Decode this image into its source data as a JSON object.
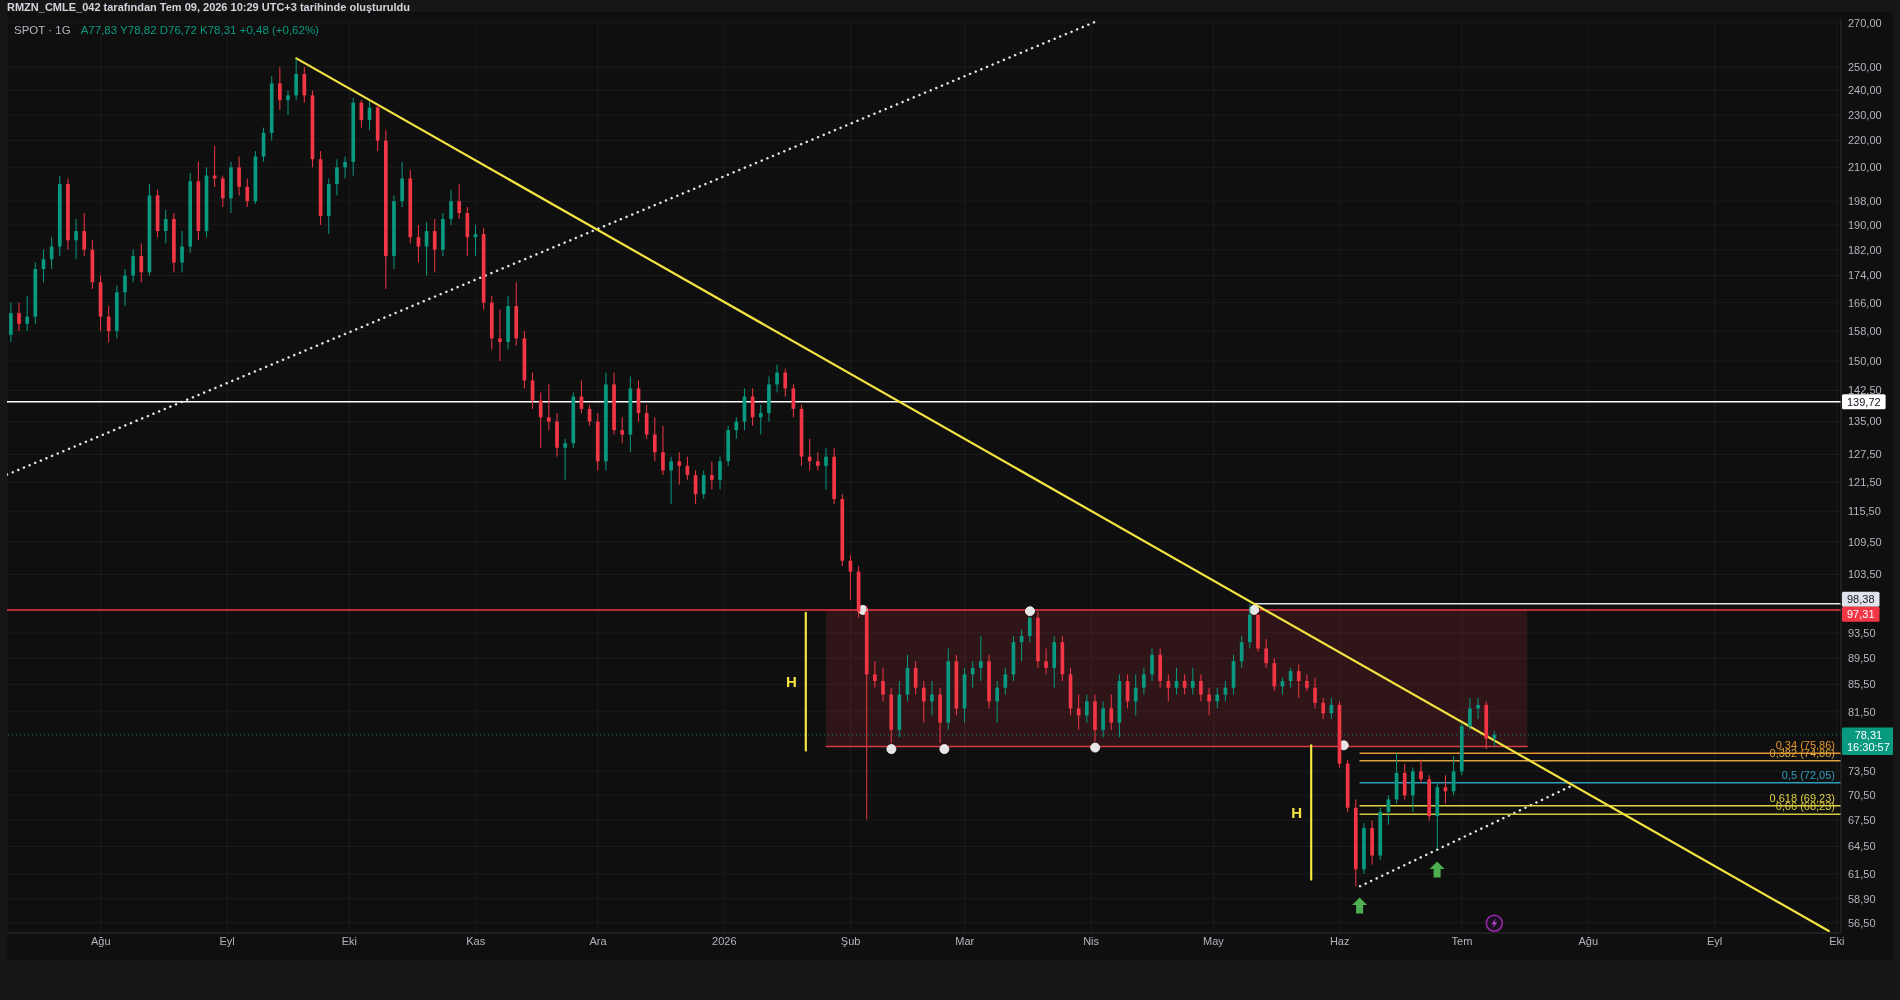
{
  "chart_data": {
    "type": "candlestick",
    "title": "SPOT · 1G",
    "subtitle": "A77,83 Y78,82 D76,72 K78,31 +0,48 (+0,62%)",
    "annotations": [
      "RMZN_CMLE_042 tarafından Tem 09, 2026 10:29 UTC+3 tarihinde oluşturuldu",
      {
        "text": "0,34 (75,86)",
        "x": "2026-10-02",
        "y": 75.86
      },
      {
        "text": "0,382 (74,86)",
        "x": "2026-10-02",
        "y": 74.86
      },
      {
        "text": "0,5 (72,05)",
        "x": "2026-10-02",
        "y": 72.05
      },
      {
        "text": "0,618 (69,23)",
        "x": "2026-10-02",
        "y": 69.23
      },
      {
        "text": "0,66 (68,23)",
        "x": "2026-10-02",
        "y": 68.23
      }
    ],
    "x": [
      "2025-07-10",
      "2025-07-12",
      "2025-07-14",
      "2025-07-16",
      "2025-07-18",
      "2025-07-20",
      "2025-07-22",
      "2025-07-24",
      "2025-07-26",
      "2025-07-28",
      "2025-07-30",
      "2025-08-01",
      "2025-08-03",
      "2025-08-05",
      "2025-08-07",
      "2025-08-09",
      "2025-08-11",
      "2025-08-13",
      "2025-08-15",
      "2025-08-17",
      "2025-08-19",
      "2025-08-21",
      "2025-08-23",
      "2025-08-25",
      "2025-08-27",
      "2025-08-29",
      "2025-08-31",
      "2025-09-02",
      "2025-09-04",
      "2025-09-06",
      "2025-09-08",
      "2025-09-10",
      "2025-09-12",
      "2025-09-14",
      "2025-09-16",
      "2025-09-18",
      "2025-09-20",
      "2025-09-22",
      "2025-09-24",
      "2025-09-26",
      "2025-09-28",
      "2025-09-30",
      "2025-10-02",
      "2025-10-04",
      "2025-10-06",
      "2025-10-08",
      "2025-10-10",
      "2025-10-12",
      "2025-10-14",
      "2025-10-16",
      "2025-10-18",
      "2025-10-20",
      "2025-10-22",
      "2025-10-24",
      "2025-10-26",
      "2025-10-28",
      "2025-10-30",
      "2025-11-01",
      "2025-11-03",
      "2025-11-05",
      "2025-11-07",
      "2025-11-09",
      "2025-11-11",
      "2025-11-13",
      "2025-11-15",
      "2025-11-17",
      "2025-11-19",
      "2025-11-21",
      "2025-11-23",
      "2025-11-25",
      "2025-11-27",
      "2025-11-29",
      "2025-12-01",
      "2025-12-03",
      "2025-12-05",
      "2025-12-07",
      "2025-12-09",
      "2025-12-11",
      "2025-12-13",
      "2025-12-15",
      "2025-12-17",
      "2025-12-19",
      "2025-12-21",
      "2025-12-23",
      "2025-12-25",
      "2025-12-27",
      "2025-12-29",
      "2025-12-31",
      "2026-01-02",
      "2026-01-04",
      "2026-01-06",
      "2026-01-08",
      "2026-01-10",
      "2026-01-12",
      "2026-01-14",
      "2026-01-16",
      "2026-01-18",
      "2026-01-20",
      "2026-01-22",
      "2026-01-24",
      "2026-01-26",
      "2026-01-28",
      "2026-01-30",
      "2026-02-01",
      "2026-02-03",
      "2026-02-05",
      "2026-02-07",
      "2026-02-09",
      "2026-02-11",
      "2026-02-13",
      "2026-02-15",
      "2026-02-17",
      "2026-02-19",
      "2026-02-21",
      "2026-02-23",
      "2026-02-25",
      "2026-02-27",
      "2026-03-01",
      "2026-03-03",
      "2026-03-05",
      "2026-03-07",
      "2026-03-09",
      "2026-03-11",
      "2026-03-13",
      "2026-03-15",
      "2026-03-17",
      "2026-03-19",
      "2026-03-21",
      "2026-03-23",
      "2026-03-25",
      "2026-03-27",
      "2026-03-29",
      "2026-03-31",
      "2026-04-02",
      "2026-04-04",
      "2026-04-06",
      "2026-04-08",
      "2026-04-10",
      "2026-04-12",
      "2026-04-14",
      "2026-04-16",
      "2026-04-18",
      "2026-04-20",
      "2026-04-22",
      "2026-04-24",
      "2026-04-26",
      "2026-04-28",
      "2026-04-30",
      "2026-05-02",
      "2026-05-04",
      "2026-05-06",
      "2026-05-08",
      "2026-05-10",
      "2026-05-12",
      "2026-05-14",
      "2026-05-16",
      "2026-05-18",
      "2026-05-20",
      "2026-05-22",
      "2026-05-24",
      "2026-05-26",
      "2026-05-28",
      "2026-05-30",
      "2026-06-01",
      "2026-06-03",
      "2026-06-05",
      "2026-06-07",
      "2026-06-09",
      "2026-06-11",
      "2026-06-13",
      "2026-06-15",
      "2026-06-17",
      "2026-06-19",
      "2026-06-21",
      "2026-06-23",
      "2026-06-25",
      "2026-06-27",
      "2026-06-29",
      "2026-07-01",
      "2026-07-03",
      "2026-07-05",
      "2026-07-07",
      "2026-07-09"
    ],
    "ohlc": [
      [
        157,
        166,
        155,
        163
      ],
      [
        163,
        166,
        158,
        160
      ],
      [
        160,
        168,
        158,
        162
      ],
      [
        162,
        178,
        160,
        176
      ],
      [
        176,
        182,
        172,
        179
      ],
      [
        179,
        186,
        176,
        183
      ],
      [
        183,
        207,
        180,
        204
      ],
      [
        204,
        206,
        182,
        185
      ],
      [
        185,
        192,
        179,
        188
      ],
      [
        188,
        194,
        180,
        182
      ],
      [
        182,
        185,
        170,
        172
      ],
      [
        172,
        174,
        158,
        162
      ],
      [
        162,
        165,
        155,
        158
      ],
      [
        158,
        171,
        156,
        169
      ],
      [
        169,
        176,
        165,
        174
      ],
      [
        174,
        182,
        172,
        180
      ],
      [
        180,
        184,
        172,
        175
      ],
      [
        175,
        204,
        174,
        200
      ],
      [
        200,
        202,
        186,
        188
      ],
      [
        188,
        195,
        184,
        192
      ],
      [
        192,
        194,
        175,
        178
      ],
      [
        178,
        188,
        175,
        183
      ],
      [
        183,
        208,
        181,
        205
      ],
      [
        205,
        212,
        185,
        188
      ],
      [
        188,
        210,
        186,
        207
      ],
      [
        207,
        218,
        203,
        206
      ],
      [
        206,
        207,
        196,
        199
      ],
      [
        199,
        212,
        194,
        210
      ],
      [
        210,
        214,
        200,
        203
      ],
      [
        203,
        206,
        196,
        198
      ],
      [
        198,
        216,
        197,
        214
      ],
      [
        214,
        225,
        212,
        223
      ],
      [
        223,
        246,
        220,
        243
      ],
      [
        243,
        250,
        232,
        236
      ],
      [
        236,
        240,
        230,
        238
      ],
      [
        238,
        253.5,
        236,
        247
      ],
      [
        247,
        250,
        235,
        238
      ],
      [
        238,
        240,
        210,
        213
      ],
      [
        213,
        216,
        190,
        193
      ],
      [
        193,
        206,
        187,
        204
      ],
      [
        204,
        213,
        200,
        210
      ],
      [
        210,
        214,
        206,
        212
      ],
      [
        212,
        237,
        207,
        235
      ],
      [
        235,
        236,
        225,
        228
      ],
      [
        228,
        235.5,
        224,
        233
      ],
      [
        233,
        234,
        216,
        220
      ],
      [
        220,
        224,
        170,
        180
      ],
      [
        180,
        200,
        176,
        198
      ],
      [
        198,
        212,
        196,
        206
      ],
      [
        206,
        209,
        184,
        186
      ],
      [
        186,
        190,
        178,
        183
      ],
      [
        183,
        191,
        174,
        188
      ],
      [
        188,
        192,
        175,
        182
      ],
      [
        182,
        194,
        180,
        192
      ],
      [
        192,
        202,
        190,
        198
      ],
      [
        198,
        204,
        192,
        194
      ],
      [
        194,
        196,
        180,
        186
      ],
      [
        186,
        190,
        180,
        187
      ],
      [
        187,
        189,
        164,
        166
      ],
      [
        166,
        168,
        153,
        156
      ],
      [
        156,
        164,
        150,
        155
      ],
      [
        155,
        168,
        153,
        165
      ],
      [
        165,
        172,
        154,
        156
      ],
      [
        156,
        158,
        143,
        145
      ],
      [
        145,
        147,
        138,
        140
      ],
      [
        140,
        142,
        129,
        136
      ],
      [
        136,
        144,
        133,
        135
      ],
      [
        135,
        137,
        127,
        129
      ],
      [
        129,
        131,
        122,
        130
      ],
      [
        130,
        142,
        129,
        141
      ],
      [
        141,
        145,
        137,
        138
      ],
      [
        138,
        139,
        134,
        135
      ],
      [
        135,
        137,
        124,
        126
      ],
      [
        126,
        147,
        124,
        144
      ],
      [
        144,
        147,
        132,
        133
      ],
      [
        133,
        136,
        130,
        132
      ],
      [
        132,
        146,
        128,
        143
      ],
      [
        143,
        145,
        135,
        137
      ],
      [
        137,
        139,
        131,
        132
      ],
      [
        132,
        136,
        126,
        128
      ],
      [
        128,
        134,
        123,
        124
      ],
      [
        124,
        127,
        117,
        126
      ],
      [
        126,
        128,
        121,
        125
      ],
      [
        125,
        127,
        122,
        123
      ],
      [
        123,
        124,
        117,
        119
      ],
      [
        119,
        124,
        118,
        123
      ],
      [
        123,
        126,
        120,
        122
      ],
      [
        122,
        127,
        120,
        126
      ],
      [
        126,
        134,
        125,
        133
      ],
      [
        133,
        136,
        131,
        135
      ],
      [
        135,
        143,
        133,
        141
      ],
      [
        141,
        143,
        134,
        136
      ],
      [
        136,
        139,
        132,
        137
      ],
      [
        137,
        146,
        135,
        144
      ],
      [
        144,
        149,
        142,
        147
      ],
      [
        147,
        148,
        141,
        143
      ],
      [
        143,
        144,
        136,
        138
      ],
      [
        138,
        139,
        125,
        127
      ],
      [
        127,
        131,
        124,
        126
      ],
      [
        126,
        128,
        124,
        125
      ],
      [
        125,
        129,
        120,
        127
      ],
      [
        127,
        129,
        117,
        118
      ],
      [
        118,
        119,
        105,
        106
      ],
      [
        106,
        107,
        99,
        104
      ],
      [
        104,
        105,
        96,
        97
      ],
      [
        97,
        98,
        67.6,
        87
      ],
      [
        87,
        89,
        85,
        86
      ],
      [
        86,
        88,
        83,
        84
      ],
      [
        84,
        85,
        77.2,
        79
      ],
      [
        79,
        86,
        78,
        84
      ],
      [
        84,
        90,
        83,
        88
      ],
      [
        88,
        89,
        84,
        85
      ],
      [
        85,
        86,
        80,
        83
      ],
      [
        83,
        86,
        81,
        84
      ],
      [
        84,
        85,
        77.2,
        80
      ],
      [
        80,
        91,
        79,
        89
      ],
      [
        89,
        90,
        81,
        82
      ],
      [
        82,
        88,
        80,
        87
      ],
      [
        87,
        89,
        85,
        88
      ],
      [
        88,
        93,
        86,
        89
      ],
      [
        89,
        90,
        82,
        83
      ],
      [
        83,
        86,
        80,
        85
      ],
      [
        85,
        88,
        84,
        87
      ],
      [
        87,
        93,
        86,
        92
      ],
      [
        92,
        94,
        89,
        93
      ],
      [
        93,
        96.2,
        92,
        96
      ],
      [
        96,
        97,
        88,
        89
      ],
      [
        89,
        91,
        87,
        88
      ],
      [
        88,
        93,
        85,
        92
      ],
      [
        92,
        93,
        86,
        87
      ],
      [
        87,
        88,
        81,
        82
      ],
      [
        82,
        84,
        79,
        81
      ],
      [
        81,
        84,
        80,
        83
      ],
      [
        83,
        84,
        77.4,
        79
      ],
      [
        79,
        83,
        78,
        82
      ],
      [
        82,
        84,
        79,
        80
      ],
      [
        80,
        87,
        78,
        86
      ],
      [
        86,
        87,
        82,
        83
      ],
      [
        83,
        87,
        81,
        85
      ],
      [
        85,
        88,
        84,
        87
      ],
      [
        87,
        91,
        86,
        90
      ],
      [
        90,
        91,
        85,
        86
      ],
      [
        86,
        87,
        83,
        85
      ],
      [
        85,
        88,
        84,
        86
      ],
      [
        86,
        87,
        84,
        85
      ],
      [
        85,
        88,
        84,
        86
      ],
      [
        86,
        87,
        83,
        84
      ],
      [
        84,
        85,
        81,
        83
      ],
      [
        83,
        85,
        82,
        84
      ],
      [
        84,
        86,
        83,
        85
      ],
      [
        85,
        90,
        84,
        89
      ],
      [
        89,
        93,
        88,
        92
      ],
      [
        92,
        98.38,
        91,
        96.5
      ],
      [
        96.5,
        96.5,
        90.5,
        91
      ],
      [
        91,
        92.5,
        88,
        88.7
      ],
      [
        88.7,
        89.5,
        84.5,
        85.2
      ],
      [
        85.2,
        86.5,
        84,
        86
      ],
      [
        86,
        88,
        85,
        87.5
      ],
      [
        87.5,
        88.5,
        83.5,
        86
      ],
      [
        86,
        87,
        84.5,
        85
      ],
      [
        85,
        86.5,
        82,
        82.8
      ],
      [
        82.8,
        83.5,
        80.5,
        81.3
      ],
      [
        81.3,
        83.5,
        80.5,
        82.5
      ],
      [
        82.5,
        83,
        74,
        74.5
      ],
      [
        74.5,
        75,
        68.5,
        69
      ],
      [
        69,
        70,
        60.2,
        62
      ],
      [
        62,
        67.2,
        61.5,
        66.6
      ],
      [
        66.6,
        67.5,
        62.5,
        63.5
      ],
      [
        63.5,
        69,
        63,
        68.5
      ],
      [
        68.5,
        70.5,
        67,
        70
      ],
      [
        70,
        75.9,
        69.5,
        73.3
      ],
      [
        73.3,
        74.5,
        70,
        70.5
      ],
      [
        70.5,
        74,
        68.5,
        73.5
      ],
      [
        73.5,
        75,
        72,
        72.5
      ],
      [
        72.5,
        73,
        67.5,
        68
      ],
      [
        68,
        72,
        64.2,
        71.5
      ],
      [
        71.5,
        73,
        69.5,
        71
      ],
      [
        71,
        75.5,
        70.5,
        73.5
      ],
      [
        73.5,
        80,
        73,
        79.5
      ],
      [
        79.5,
        83.5,
        79,
        82
      ],
      [
        82,
        83.5,
        80.5,
        82.5
      ],
      [
        82.5,
        83,
        76.4,
        77.83
      ],
      [
        77.83,
        78.82,
        76.72,
        78.31
      ]
    ],
    "colors": [
      "#089981",
      "#f23645",
      "#089981",
      "#089981",
      "#089981",
      "#089981",
      "#089981",
      "#f23645",
      "#089981",
      "#f23645",
      "#f23645",
      "#f23645",
      "#f23645",
      "#089981",
      "#089981",
      "#089981",
      "#f23645",
      "#089981",
      "#f23645",
      "#089981",
      "#f23645",
      "#089981",
      "#089981",
      "#f23645",
      "#089981",
      "#f23645",
      "#f23645",
      "#089981",
      "#f23645",
      "#f23645",
      "#089981",
      "#089981",
      "#089981",
      "#f23645",
      "#089981",
      "#089981",
      "#f23645",
      "#f23645",
      "#f23645",
      "#089981",
      "#089981",
      "#089981",
      "#089981",
      "#f23645",
      "#089981",
      "#f23645",
      "#f23645",
      "#089981",
      "#089981",
      "#f23645",
      "#f23645",
      "#089981",
      "#f23645",
      "#089981",
      "#089981",
      "#f23645",
      "#f23645",
      "#089981",
      "#f23645",
      "#f23645",
      "#f23645",
      "#089981",
      "#f23645",
      "#f23645",
      "#f23645",
      "#f23645",
      "#f23645",
      "#f23645",
      "#089981",
      "#089981",
      "#f23645",
      "#f23645",
      "#f23645",
      "#089981",
      "#f23645",
      "#f23645",
      "#089981",
      "#f23645",
      "#f23645",
      "#f23645",
      "#f23645",
      "#089981",
      "#f23645",
      "#f23645",
      "#f23645",
      "#089981",
      "#f23645",
      "#089981",
      "#089981",
      "#089981",
      "#089981",
      "#f23645",
      "#089981",
      "#089981",
      "#089981",
      "#f23645",
      "#f23645",
      "#f23645",
      "#f23645",
      "#f23645",
      "#089981",
      "#f23645",
      "#f23645",
      "#f23645",
      "#f23645",
      "#f23645",
      "#f23645",
      "#f23645",
      "#f23645",
      "#089981",
      "#089981",
      "#f23645",
      "#f23645",
      "#089981",
      "#f23645",
      "#089981",
      "#f23645",
      "#089981",
      "#089981",
      "#089981",
      "#f23645",
      "#089981",
      "#089981",
      "#089981",
      "#089981",
      "#089981",
      "#f23645",
      "#f23645",
      "#089981",
      "#f23645",
      "#f23645",
      "#f23645",
      "#089981",
      "#f23645",
      "#089981",
      "#f23645",
      "#089981",
      "#f23645",
      "#089981",
      "#089981",
      "#089981",
      "#f23645",
      "#f23645",
      "#089981",
      "#f23645",
      "#089981",
      "#f23645",
      "#f23645",
      "#089981",
      "#089981",
      "#089981",
      "#089981",
      "#089981",
      "#f23645",
      "#f23645",
      "#f23645",
      "#089981",
      "#089981",
      "#f23645",
      "#f23645",
      "#f23645",
      "#f23645",
      "#089981",
      "#f23645",
      "#f23645",
      "#f23645",
      "#089981",
      "#f23645",
      "#089981",
      "#089981",
      "#089981",
      "#f23645",
      "#089981",
      "#f23645",
      "#f23645",
      "#089981",
      "#f23645",
      "#089981",
      "#089981",
      "#089981",
      "#089981",
      "#f23645",
      "#089981"
    ],
    "series": [
      {
        "type": "line",
        "x": [
          "2026-01-26",
          "2026-07-17"
        ],
        "values": [
          76.75,
          76.75
        ],
        "lower": [
          76.75,
          76.75
        ],
        "upper": [
          97.31,
          97.31
        ],
        "color": "#d93a48"
      },
      {
        "type": "line",
        "x": [
          "2025-07-09",
          "2026-04-02"
        ],
        "values": [
          123.1,
          270.4
        ],
        "color": "#e0e3eb",
        "line_style": "dotted"
      },
      {
        "type": "line",
        "x": [
          "2026-06-06",
          "2026-07-28"
        ],
        "values": [
          60.2,
          71.7
        ],
        "color": "#e0e3eb",
        "line_style": "dotted"
      },
      {
        "type": "line",
        "name": "98,38",
        "x": [
          "2026-05-11",
          "2026-10-02"
        ],
        "values": [
          98.38,
          98.38
        ],
        "color": "#e0e3eb"
      },
      {
        "type": "line",
        "x": [
          "2026-06-06",
          "2026-10-02"
        ],
        "values": [
          75.86,
          75.86
        ],
        "color": "#e8922e"
      },
      {
        "type": "line",
        "x": [
          "2026-06-06",
          "2026-10-02"
        ],
        "values": [
          74.86,
          74.86
        ],
        "color": "#d9a441"
      },
      {
        "type": "line",
        "x": [
          "2026-06-06",
          "2026-10-02"
        ],
        "values": [
          72.05,
          72.05
        ],
        "color": "#2f9fbf"
      },
      {
        "type": "line",
        "x": [
          "2026-06-06",
          "2026-10-02"
        ],
        "values": [
          69.23,
          69.23
        ],
        "color": "#e2d245"
      },
      {
        "type": "line",
        "x": [
          "2026-06-06",
          "2026-10-02"
        ],
        "values": [
          68.23,
          68.23
        ],
        "color": "#d6c840"
      },
      {
        "type": "line",
        "name": "H",
        "x": [
          "2026-01-21",
          "2026-01-21"
        ],
        "values": [
          96.8,
          76.2
        ],
        "color": "#f5e342"
      },
      {
        "type": "line",
        "name": "H",
        "x": [
          "2026-05-25",
          "2026-05-25"
        ],
        "values": [
          76.9,
          60.9
        ],
        "color": "#f5e342"
      },
      {
        "type": "line",
        "x": [
          "2025-09-18",
          "2026-09-29"
        ],
        "values": [
          253.8,
          55.7
        ],
        "color": "#f5e342"
      },
      {
        "type": "scatter",
        "marker": "circle",
        "x": [
          "2026-02-04",
          "2026-02-11",
          "2026-02-24",
          "2026-03-17",
          "2026-04-02",
          "2026-05-11",
          "2026-06-02"
        ],
        "values": [
          97.31,
          76.4,
          76.4,
          97.1,
          76.6,
          97.31,
          76.9
        ],
        "color": "#e6e6e6"
      }
    ],
    "ref_lines": [
      {
        "axis": "y",
        "value": 139.72,
        "label": "139,72",
        "color": "#ffffff"
      },
      {
        "axis": "y",
        "value": 97.31,
        "label": "97,31",
        "color": "#f23645"
      },
      {
        "axis": "y",
        "value": 78.31,
        "label": "78,31\n16:30:57",
        "color": "#089981",
        "line_style": "dotted"
      }
    ],
    "xlim": [
      "2025-07-09",
      "2026-10-02"
    ],
    "xticks": [
      {
        "value": "2025-08-01",
        "label": "Ağu"
      },
      {
        "value": "2025-09-01",
        "label": "Eyl"
      },
      {
        "value": "2025-10-01",
        "label": "Eki"
      },
      {
        "value": "2025-11-01",
        "label": "Kas"
      },
      {
        "value": "2025-12-01",
        "label": "Ara"
      },
      {
        "value": "2026-01-01",
        "label": "2026"
      },
      {
        "value": "2026-02-01",
        "label": "Şub"
      },
      {
        "value": "2026-03-01",
        "label": "Mar"
      },
      {
        "value": "2026-04-01",
        "label": "Nis"
      },
      {
        "value": "2026-05-01",
        "label": "May"
      },
      {
        "value": "2026-06-01",
        "label": "Haz"
      },
      {
        "value": "2026-07-01",
        "label": "Tem"
      },
      {
        "value": "2026-08-01",
        "label": "Ağu"
      },
      {
        "value": "2026-09-01",
        "label": "Eyl"
      },
      {
        "value": "2026-10-01",
        "label": "Eki"
      }
    ],
    "ylim": [
      55.5,
      271.3
    ],
    "yticks": [
      {
        "value": 270,
        "label": "270,00"
      },
      {
        "value": 250,
        "label": "250,00"
      },
      {
        "value": 240,
        "label": "240,00"
      },
      {
        "value": 230,
        "label": "230,00"
      },
      {
        "value": 220,
        "label": "220,00"
      },
      {
        "value": 210,
        "label": "210,00"
      },
      {
        "value": 198,
        "label": "198,00"
      },
      {
        "value": 190,
        "label": "190,00"
      },
      {
        "value": 182,
        "label": "182,00"
      },
      {
        "value": 174,
        "label": "174,00"
      },
      {
        "value": 166,
        "label": "166,00"
      },
      {
        "value": 158,
        "label": "158,00"
      },
      {
        "value": 150,
        "label": "150,00"
      },
      {
        "value": 142.5,
        "label": "142,50"
      },
      {
        "value": 135,
        "label": "135,00"
      },
      {
        "value": 127.5,
        "label": "127,50"
      },
      {
        "value": 121.5,
        "label": "121,50"
      },
      {
        "value": 115.5,
        "label": "115,50"
      },
      {
        "value": 109.5,
        "label": "109,50"
      },
      {
        "value": 103.5,
        "label": "103,50"
      },
      {
        "value": 93.5,
        "label": "93,50"
      },
      {
        "value": 89.5,
        "label": "89,50"
      },
      {
        "value": 85.5,
        "label": "85,50"
      },
      {
        "value": 81.5,
        "label": "81,50"
      },
      {
        "value": 73.5,
        "label": "73,50"
      },
      {
        "value": 70.5,
        "label": "70,50"
      },
      {
        "value": 67.5,
        "label": "67,50"
      },
      {
        "value": 64.5,
        "label": "64,50"
      },
      {
        "value": 61.5,
        "label": "61,50"
      },
      {
        "value": 58.9,
        "label": "58,90"
      },
      {
        "value": 56.5,
        "label": "56,50"
      }
    ],
    "log": true,
    "grid": true
  }
}
